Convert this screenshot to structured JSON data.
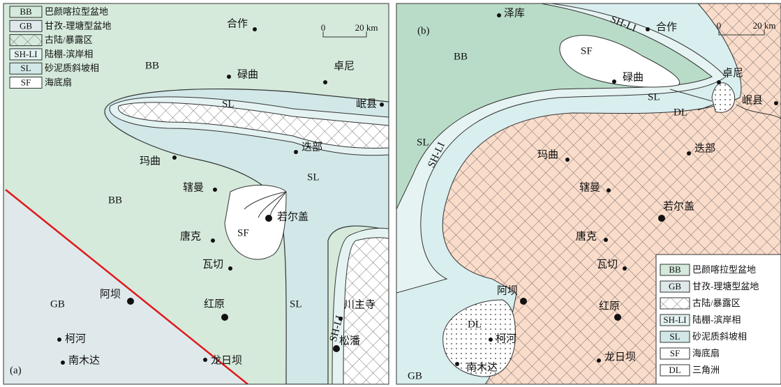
{
  "panels": [
    {
      "label": "(a)",
      "legend": [
        {
          "code": "BB",
          "text": "巴颜喀拉型盆地"
        },
        {
          "code": "GB",
          "text": "甘孜-理塘型盆地"
        },
        {
          "text": "古陆/暴露区"
        },
        {
          "code": "SH-LI",
          "text": "陆棚-滨岸相"
        },
        {
          "code": "SL",
          "text": "砂泥质斜坡相"
        },
        {
          "code": "SF",
          "text": "海底扇"
        }
      ],
      "scale": {
        "start": 0,
        "end": "20 km"
      },
      "places": [
        "合作",
        "碌曲",
        "卓尼",
        "岷县",
        "玛曲",
        "迭部",
        "辖曼",
        "若尔盖",
        "唐克",
        "瓦切",
        "阿坝",
        "红原",
        "柯河",
        "南木达",
        "龙日坝",
        "川主寺",
        "松潘"
      ],
      "facies_labels": [
        "BB",
        "SL",
        "SL",
        "BB",
        "SF",
        "GB",
        "SL",
        "SH-LI"
      ]
    },
    {
      "label": "(b)",
      "legend": [
        {
          "code": "BB",
          "text": "巴颜喀拉型盆地"
        },
        {
          "code": "GB",
          "text": "甘孜-理塘型盆地"
        },
        {
          "text": "古陆/暴露区"
        },
        {
          "code": "SH-LI",
          "text": "陆棚-滨岸相"
        },
        {
          "code": "SL",
          "text": "砂泥质斜坡相"
        },
        {
          "code": "SF",
          "text": "海底扇"
        },
        {
          "code": "DL",
          "text": "三角洲"
        }
      ],
      "scale": {
        "start": 0,
        "end": "20 km"
      },
      "places": [
        "泽库",
        "合作",
        "碌曲",
        "卓尼",
        "岷县",
        "迭部",
        "玛曲",
        "辖曼",
        "若尔盖",
        "唐克",
        "瓦切",
        "阿坝",
        "红原",
        "柯河",
        "南木达",
        "龙日坝"
      ],
      "facies_labels": [
        "BB",
        "SF",
        "SL",
        "DL",
        "SL",
        "SH-LI",
        "SH-LI",
        "DL",
        "GB"
      ]
    }
  ]
}
